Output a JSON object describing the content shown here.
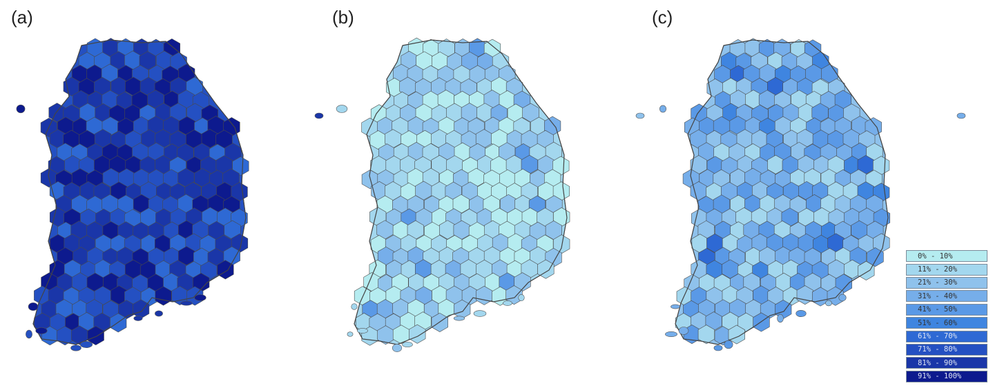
{
  "panels": [
    {
      "label": "(a)",
      "base": 7,
      "range": 3
    },
    {
      "label": "(b)",
      "base": 1,
      "range": 2
    },
    {
      "label": "(c)",
      "base": 2,
      "range": 3
    }
  ],
  "legend": {
    "classes": [
      "0% - 10%",
      "11% - 20%",
      "21% - 30%",
      "31% - 40%",
      "41% - 50%",
      "51% - 60%",
      "61% - 70%",
      "71% - 80%",
      "81% - 90%",
      "91% - 100%"
    ],
    "colors": [
      "#b5ecf0",
      "#a3d7ee",
      "#8fc2ec",
      "#76aeea",
      "#5a99e6",
      "#3f85e0",
      "#2e69d4",
      "#2450c2",
      "#1a36a8",
      "#0d1a8e"
    ]
  }
}
